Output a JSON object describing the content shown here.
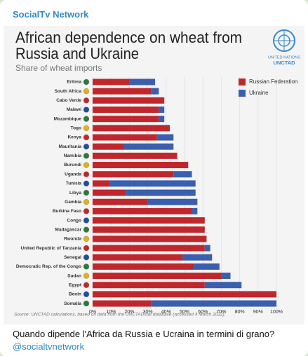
{
  "channel": "SocialTv Network",
  "caption": "Quando dipende l'Africa da Russia e Ucraina in termini di grano?",
  "handle": "@socialtvnetwork",
  "chart_data": {
    "type": "stacked_barh",
    "title": [
      "African dependence on wheat from",
      "Russia and Ukraine"
    ],
    "subtitle": "Share of wheat imports",
    "logo_text": [
      "UNITED NATIONS",
      "UNCTAD"
    ],
    "source": "Source: UNCTAD calculations, based on data from the UNCTADstat database (accessed 4 March 2022).",
    "categories": [
      "Eritrea",
      "South Africa",
      "Cabo Verde",
      "Malawi",
      "Mozambique",
      "Togo",
      "Kenya",
      "Mauritania",
      "Namibia",
      "Burundi",
      "Uganda",
      "Tunisia",
      "Libya",
      "Gambia",
      "Burkina Faso",
      "Congo",
      "Madagascar",
      "Rwanda",
      "United Republic of Tanzania",
      "Senegal",
      "Democratic Rep. of the Congo",
      "Sudan",
      "Egypt",
      "Benin",
      "Somalia"
    ],
    "series": [
      {
        "name": "Russian Federation",
        "color": "#c0272d",
        "values": [
          20,
          32,
          39,
          36,
          36,
          42,
          35,
          17,
          46,
          52,
          44,
          9,
          18,
          30,
          54,
          61,
          61,
          62,
          61,
          49,
          55,
          70,
          61,
          100,
          32
        ]
      },
      {
        "name": "Ukraine",
        "color": "#3a5fae",
        "values": [
          14,
          4,
          0,
          3,
          3,
          0,
          9,
          27,
          0,
          0,
          10,
          47,
          38,
          27,
          3,
          0,
          0,
          0,
          3,
          16,
          14,
          5,
          20,
          0,
          68
        ]
      }
    ],
    "xlim": [
      0,
      100
    ],
    "xticks": [
      {
        "value": 0,
        "label": "0%"
      },
      {
        "value": 10,
        "label": "10%"
      },
      {
        "value": 20,
        "label": "20%"
      },
      {
        "value": 30,
        "label": "30%"
      },
      {
        "value": 40,
        "label": "40%"
      },
      {
        "value": 50,
        "label": "50%"
      },
      {
        "value": 60,
        "label": "60%"
      },
      {
        "value": 70,
        "label": "70%"
      },
      {
        "value": 80,
        "label": "80%"
      },
      {
        "value": 90,
        "label": "90%"
      },
      {
        "value": 100,
        "label": "100%"
      }
    ],
    "grid": true,
    "legend": "upper right"
  }
}
